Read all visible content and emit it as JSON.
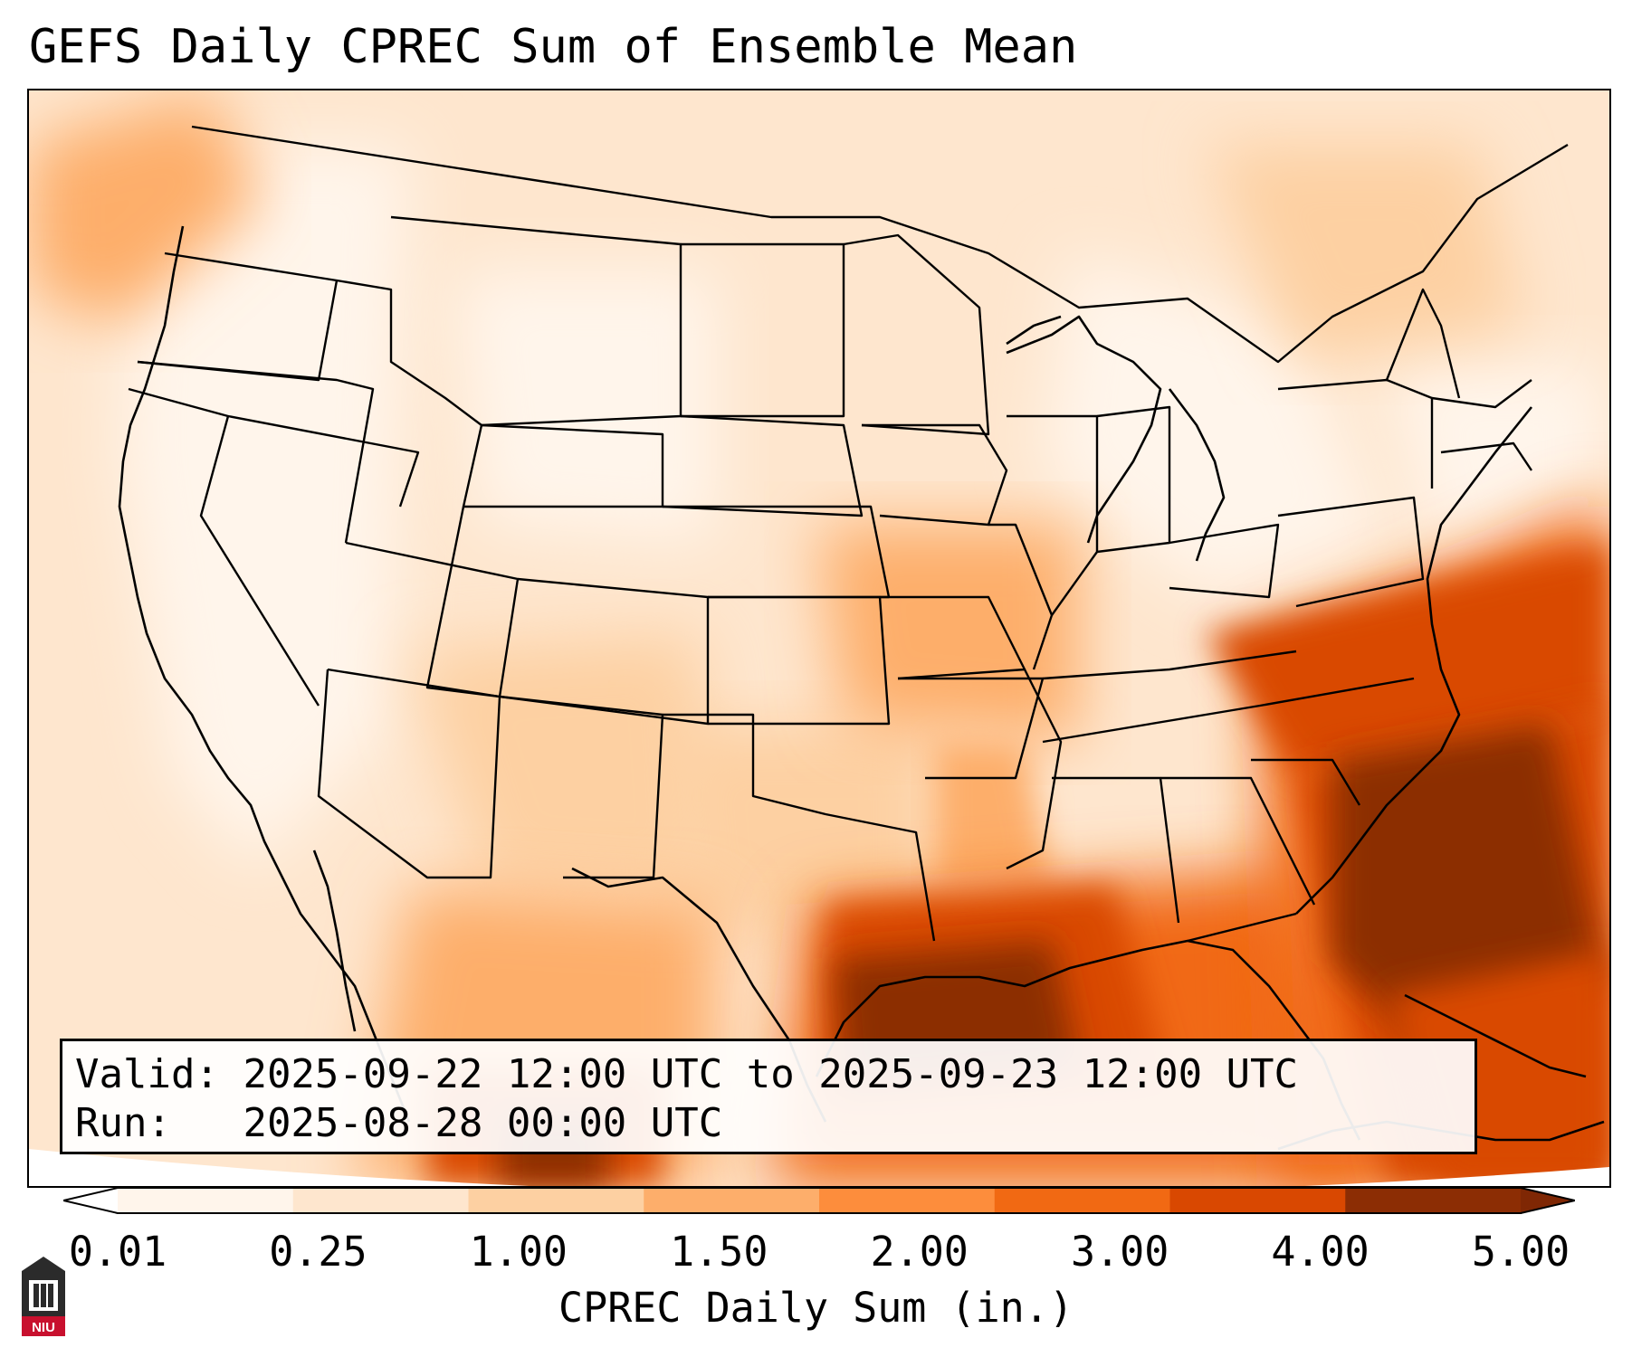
{
  "title": "GEFS Daily CPREC Sum of Ensemble Mean",
  "info": {
    "valid_label": "Valid:",
    "valid_value": "2025-09-22 12:00 UTC to 2025-09-23 12:00 UTC",
    "run_label": "Run:",
    "run_value": "2025-08-28 00:00 UTC"
  },
  "colorbar": {
    "label": "CPREC Daily Sum (in.)",
    "ticks": [
      "0.01",
      "0.25",
      "1.00",
      "1.50",
      "2.00",
      "3.00",
      "4.00",
      "5.00"
    ],
    "colors": [
      "#fff5eb",
      "#fee6ce",
      "#fdd0a2",
      "#fdae6b",
      "#fd8d3c",
      "#f16913",
      "#d94801",
      "#8c2d04"
    ],
    "under_color": "#ffffff",
    "over_color": "#7f2704",
    "extend": "both"
  },
  "logo": {
    "text": "NIU",
    "color": "#c8102e"
  },
  "map": {
    "projection": "Lambert conformal, CONUS",
    "land_background": "#fff5eb",
    "boundary_color": "#000000"
  }
}
